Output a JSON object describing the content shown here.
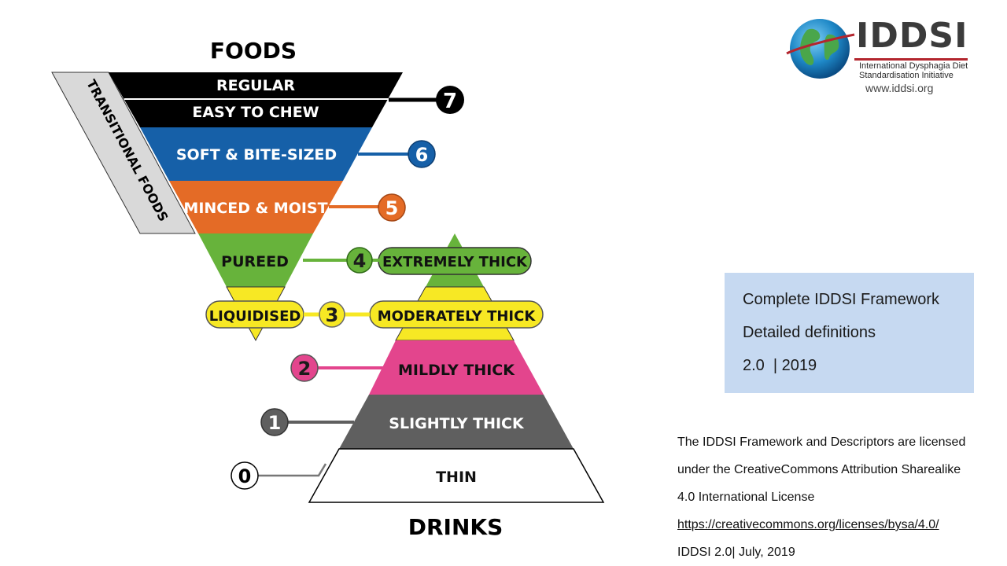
{
  "diagram": {
    "foods_title": "FOODS",
    "drinks_title": "DRINKS",
    "transitional_label": "TRANSITIONAL FOODS",
    "levels": {
      "regular": "REGULAR",
      "easy_to_chew": "EASY TO CHEW",
      "soft_bite_sized": "SOFT & BITE-SIZED",
      "minced_moist": "MINCED & MOIST",
      "pureed": "PUREED",
      "extremely_thick": "EXTREMELY THICK",
      "liquidised": "LIQUIDISED",
      "moderately_thick": "MODERATELY THICK",
      "mildly_thick": "MILDLY THICK",
      "slightly_thick": "SLIGHTLY THICK",
      "thin": "THIN"
    },
    "numbers": [
      "0",
      "1",
      "2",
      "3",
      "4",
      "5",
      "6",
      "7"
    ],
    "colors": {
      "level7": "#000000",
      "level6": "#1660a8",
      "level5": "#e46b26",
      "level4": "#67b33b",
      "level3": "#f7e824",
      "level2": "#e3458d",
      "level1": "#5f5f5f",
      "level0": "#ffffff",
      "transitional": "#d9d9d9"
    }
  },
  "logo": {
    "name": "IDDSI",
    "subtitle_line1": "International Dysphagia Diet",
    "subtitle_line2": "Standardisation Initiative",
    "url": "www.iddsi.org",
    "icon": "globe-icon"
  },
  "info_box": {
    "line1": "Complete IDDSI Framework",
    "line2": "Detailed definitions",
    "line3": "2.0  | 2019"
  },
  "license": {
    "line1": "The IDDSI Framework and Descriptors are licensed",
    "line2": "under the CreativeCommons Attribution Sharealike",
    "line3": "4.0 International License",
    "link": "https://creativecommons.org/licenses/bysa/4.0/",
    "footer": "IDDSI 2.0| July, 2019"
  }
}
